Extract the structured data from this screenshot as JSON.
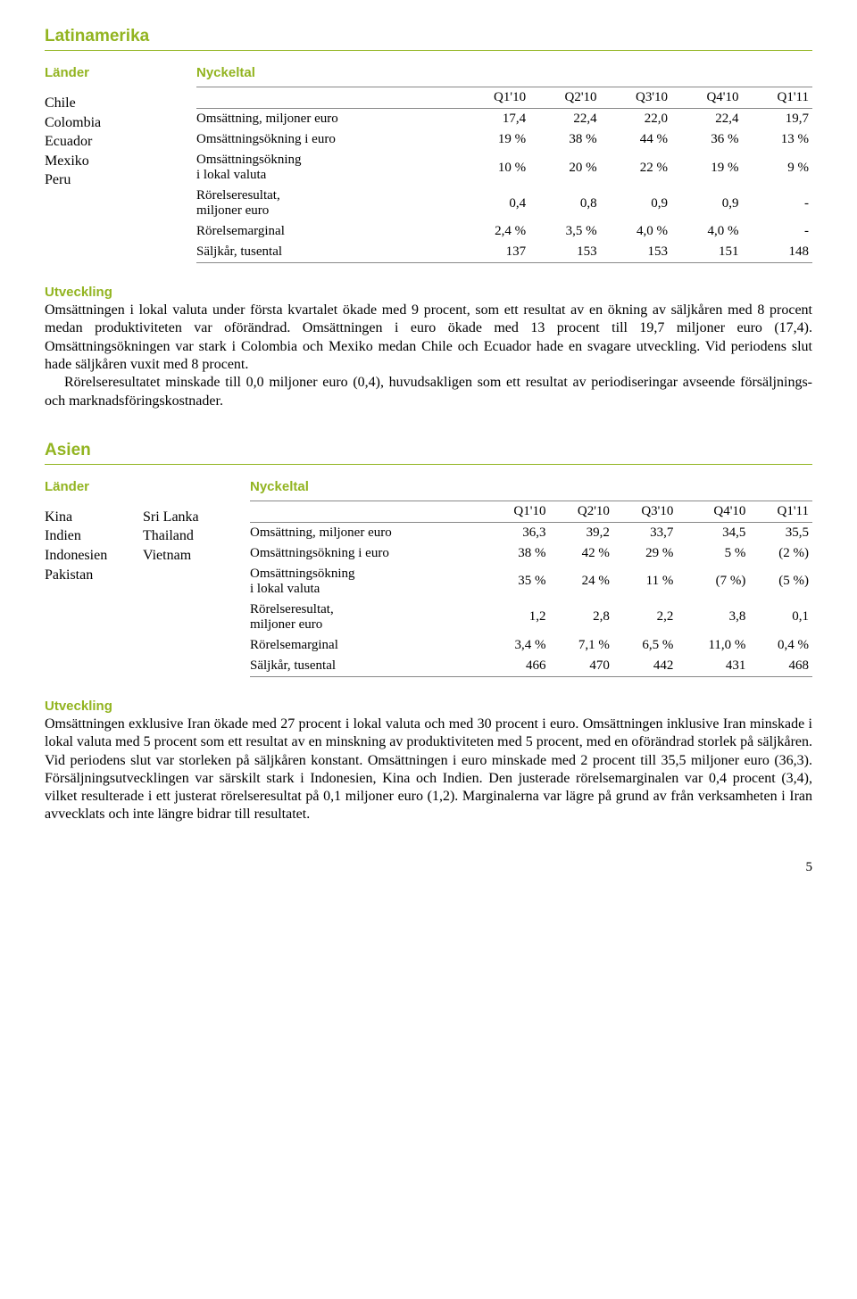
{
  "pageNumber": "5",
  "latin": {
    "heading": "Latinamerika",
    "landerLabel": "Länder",
    "nyckeltalLabel": "Nyckeltal",
    "countries": [
      "Chile",
      "Colombia",
      "Ecuador",
      "Mexiko",
      "Peru"
    ],
    "table": {
      "headers": [
        "Q1'10",
        "Q2'10",
        "Q3'10",
        "Q4'10",
        "Q1'11"
      ],
      "rows": [
        {
          "label": "Omsättning, miljoner euro",
          "cells": [
            "17,4",
            "22,4",
            "22,0",
            "22,4",
            "19,7"
          ]
        },
        {
          "label": "Omsättningsökning i euro",
          "cells": [
            "19 %",
            "38 %",
            "44 %",
            "36 %",
            "13 %"
          ]
        },
        {
          "label": "Omsättningsökning<br>i lokal valuta",
          "cells": [
            "10 %",
            "20 %",
            "22 %",
            "19 %",
            "9 %"
          ]
        },
        {
          "label": "Rörelseresultat,<br>miljoner euro",
          "cells": [
            "0,4",
            "0,8",
            "0,9",
            "0,9",
            "-"
          ]
        },
        {
          "label": "Rörelsemarginal",
          "cells": [
            "2,4 %",
            "3,5 %",
            "4,0 %",
            "4,0 %",
            "-"
          ]
        },
        {
          "label": "Säljkår, tusental",
          "cells": [
            "137",
            "153",
            "153",
            "151",
            "148"
          ]
        }
      ]
    },
    "utvecklingHeading": "Utveckling",
    "para1": "Omsättningen i lokal valuta under första kvartalet ökade med 9 procent, som ett resultat av en ökning av säljkåren med 8 procent medan produktiviteten var oförändrad. Omsättningen i euro ökade med 13 procent till 19,7 miljoner euro (17,4). Omsättningsökningen var stark i Colombia och Mexiko medan Chile och Ecuador hade en svagare utveckling. Vid periodens slut hade säljkåren vuxit med 8 procent.",
    "para2": "Rörelseresultatet minskade till 0,0 miljoner euro (0,4), huvudsakligen som ett resultat av periodiseringar avseende försäljnings- och marknadsföringskostnader."
  },
  "asia": {
    "heading": "Asien",
    "landerLabel": "Länder",
    "nyckeltalLabel": "Nyckeltal",
    "countriesCol1": [
      "Kina",
      "Indien",
      "Indonesien",
      "Pakistan"
    ],
    "countriesCol2": [
      "Sri Lanka",
      "Thailand",
      "Vietnam"
    ],
    "table": {
      "headers": [
        "Q1'10",
        "Q2'10",
        "Q3'10",
        "Q4'10",
        "Q1'11"
      ],
      "rows": [
        {
          "label": "Omsättning, miljoner euro",
          "cells": [
            "36,3",
            "39,2",
            "33,7",
            "34,5",
            "35,5"
          ]
        },
        {
          "label": "Omsättningsökning i euro",
          "cells": [
            "38 %",
            "42 %",
            "29 %",
            "5 %",
            "(2 %)"
          ]
        },
        {
          "label": "Omsättningsökning<br>i lokal valuta",
          "cells": [
            "35 %",
            "24 %",
            "11 %",
            "(7 %)",
            "(5 %)"
          ]
        },
        {
          "label": "Rörelseresultat,<br>miljoner euro",
          "cells": [
            "1,2",
            "2,8",
            "2,2",
            "3,8",
            "0,1"
          ]
        },
        {
          "label": "Rörelsemarginal",
          "cells": [
            "3,4 %",
            "7,1 %",
            "6,5 %",
            "11,0 %",
            "0,4 %"
          ]
        },
        {
          "label": "Säljkår, tusental",
          "cells": [
            "466",
            "470",
            "442",
            "431",
            "468"
          ]
        }
      ]
    },
    "utvecklingHeading": "Utveckling",
    "para1": "Omsättningen exklusive Iran ökade med 27 procent i lokal valuta och med 30 procent i euro. Omsättningen inklusive Iran minskade i lokal valuta med 5 procent som ett resultat av en minskning av produktiviteten med 5 procent, med en oförändrad storlek på säljkåren. Vid periodens slut var storleken på säljkåren konstant. Omsättningen i euro minskade med 2 procent till 35,5 miljoner euro (36,3). Försäljningsutvecklingen var särskilt stark i Indonesien, Kina och Indien. Den justerade rörelsemarginalen var 0,4 procent (3,4), vilket resulterade i ett justerat rörelseresultat på 0,1 miljoner euro (1,2). Marginalerna var lägre på grund av från verksamheten i Iran avvecklats och inte längre bidrar till resultatet."
  }
}
